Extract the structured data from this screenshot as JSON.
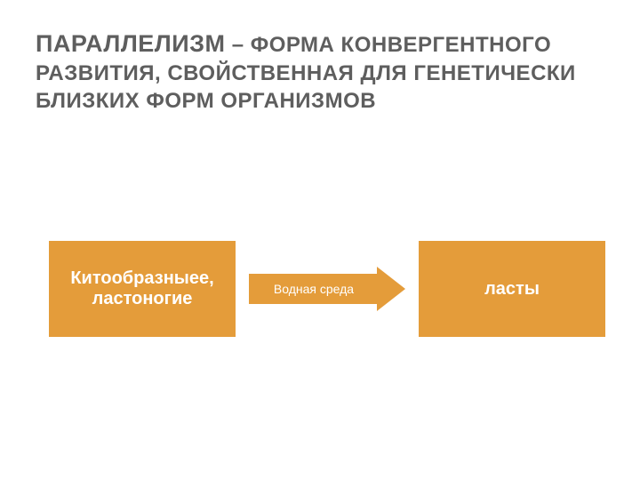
{
  "title": {
    "main": "ПАРАЛЛЕЛИЗМ",
    "rest": " – ФОРМА КОНВЕРГЕНТНОГО РАЗВИТИЯ, СВОЙСТВЕННАЯ ДЛЯ ГЕНЕТИЧЕСКИ БЛИЗКИХ ФОРМ ОРГАНИЗМОВ",
    "main_fontsize": 27,
    "rest_fontsize": 24,
    "main_weight": "bold",
    "rest_weight": "bold",
    "color": "#5e5e5e"
  },
  "diagram": {
    "type": "flowchart",
    "left_box": {
      "text": "Китообразныее, ластоногие",
      "bg_color": "#e49c3a",
      "text_color": "#ffffff",
      "border_color": "#ffffff",
      "border_width": 3,
      "fontsize": 20,
      "font_weight": "bold"
    },
    "right_box": {
      "text": "ласты",
      "bg_color": "#e49c3a",
      "text_color": "#ffffff",
      "border_color": "#ffffff",
      "border_width": 3,
      "fontsize": 20,
      "font_weight": "bold"
    },
    "arrow": {
      "label": "Водная среда",
      "bg_color": "#e49c3a",
      "text_color": "#ffffff",
      "fontsize": 14,
      "font_weight": "normal"
    },
    "background_color": "#ffffff"
  }
}
